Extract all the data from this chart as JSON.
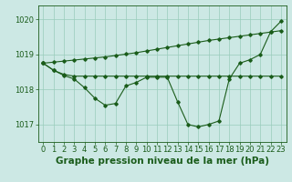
{
  "background_color": "#cce8e4",
  "grid_color": "#99ccbb",
  "line_color": "#1a5c1a",
  "marker_color": "#1a5c1a",
  "title": "Graphe pression niveau de la mer (hPa)",
  "ylim": [
    1016.5,
    1020.4
  ],
  "xlim": [
    -0.5,
    23.5
  ],
  "yticks": [
    1017,
    1018,
    1019,
    1020
  ],
  "xticks": [
    0,
    1,
    2,
    3,
    4,
    5,
    6,
    7,
    8,
    9,
    10,
    11,
    12,
    13,
    14,
    15,
    16,
    17,
    18,
    19,
    20,
    21,
    22,
    23
  ],
  "series1": [
    1018.75,
    1018.55,
    1018.4,
    1018.3,
    1018.05,
    1017.75,
    1017.55,
    1017.6,
    1018.1,
    1018.2,
    1018.35,
    1018.35,
    1018.35,
    1017.65,
    1017.0,
    1016.93,
    1017.0,
    1017.1,
    1018.3,
    1018.75,
    1018.85,
    1019.0,
    1019.65,
    1019.95
  ],
  "series2": [
    1018.75,
    1018.55,
    1018.43,
    1018.38,
    1018.38,
    1018.38,
    1018.38,
    1018.38,
    1018.38,
    1018.38,
    1018.38,
    1018.38,
    1018.38,
    1018.38,
    1018.38,
    1018.38,
    1018.38,
    1018.38,
    1018.38,
    1018.38,
    1018.38,
    1018.38,
    1018.38,
    1018.38
  ],
  "series3": [
    1018.75,
    1018.78,
    1018.81,
    1018.84,
    1018.87,
    1018.9,
    1018.93,
    1018.97,
    1019.01,
    1019.05,
    1019.1,
    1019.15,
    1019.2,
    1019.25,
    1019.3,
    1019.35,
    1019.4,
    1019.44,
    1019.48,
    1019.52,
    1019.56,
    1019.6,
    1019.64,
    1019.68
  ],
  "title_fontsize": 7.5,
  "tick_fontsize": 6.0
}
